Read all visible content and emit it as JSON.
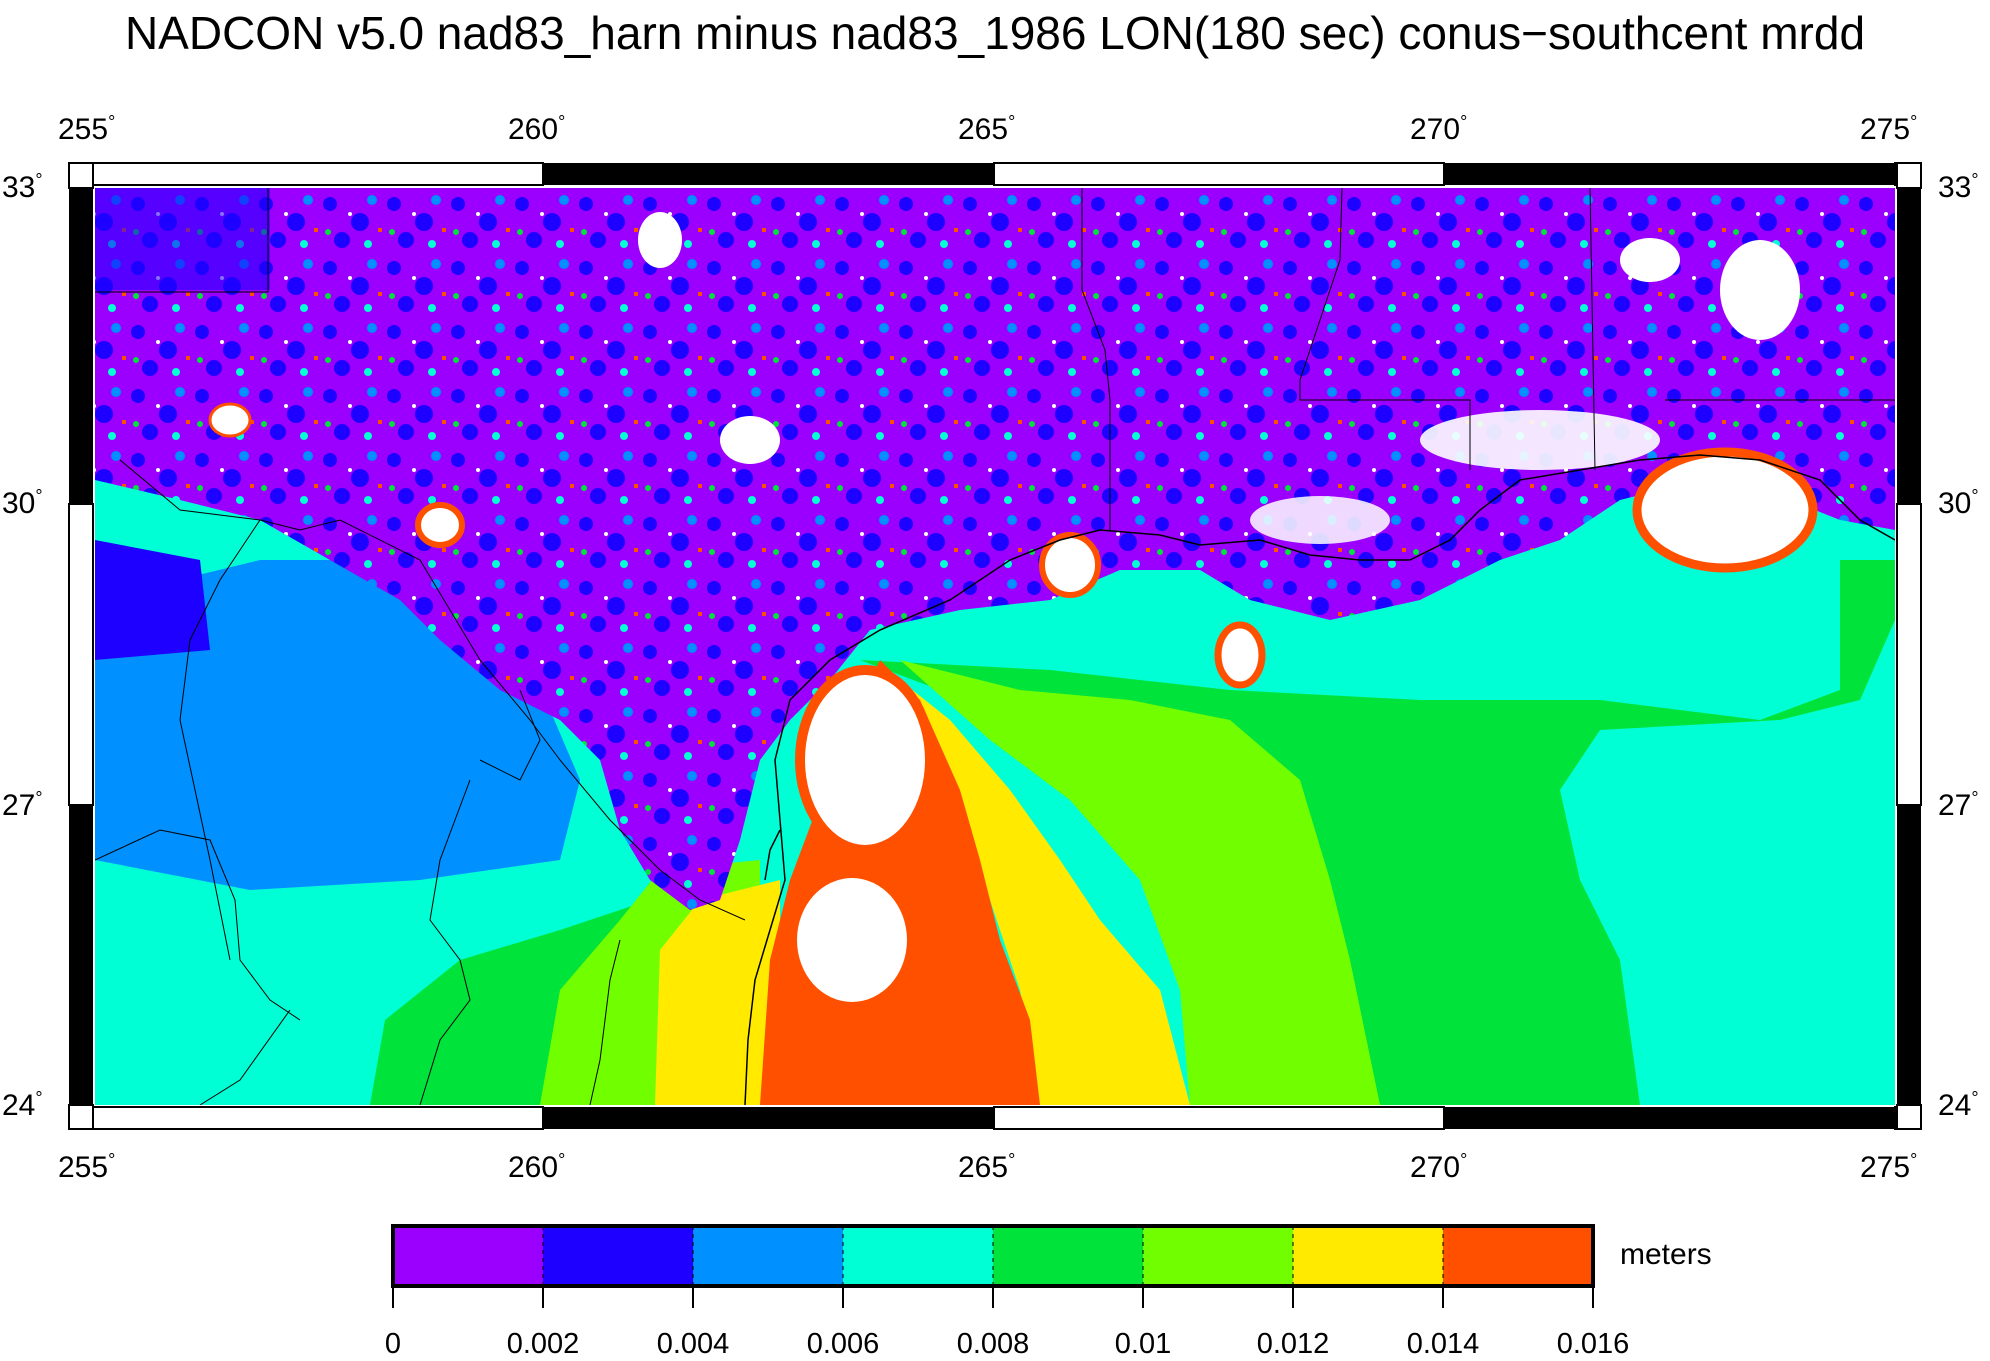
{
  "title": "NADCON v5.0 nad83_harn minus nad83_1986 LON(180 sec) conus−southcent mrdd",
  "map": {
    "lon_range": [
      255,
      275
    ],
    "lat_range": [
      24,
      33
    ],
    "lon_ticks": [
      "255",
      "260",
      "265",
      "270",
      "275"
    ],
    "lat_ticks": [
      "33",
      "30",
      "27",
      "24"
    ],
    "degree_symbol": "°",
    "features": [
      "land-noise-field",
      "gulf-smooth-field",
      "coastline",
      "state-borders",
      "mexico-borders"
    ]
  },
  "colorbar": {
    "unit": "meters",
    "tick_labels": [
      "0",
      "0.002",
      "0.004",
      "0.006",
      "0.008",
      "0.01",
      "0.012",
      "0.014",
      "0.016"
    ],
    "colors": [
      "#9b00ff",
      "#1d00ff",
      "#0090ff",
      "#00ffd5",
      "#00e33a",
      "#71ff00",
      "#ffea00",
      "#ff5000"
    ]
  },
  "colors": {
    "frame": "#000000",
    "hotspot": "#ffffff",
    "purple": "#9b00ff",
    "blue": "#1d00ff",
    "sky": "#0090ff",
    "cyan": "#00ffd5",
    "green": "#00e33a",
    "lime": "#71ff00",
    "yellow": "#ffea00",
    "orange": "#ff5000"
  }
}
